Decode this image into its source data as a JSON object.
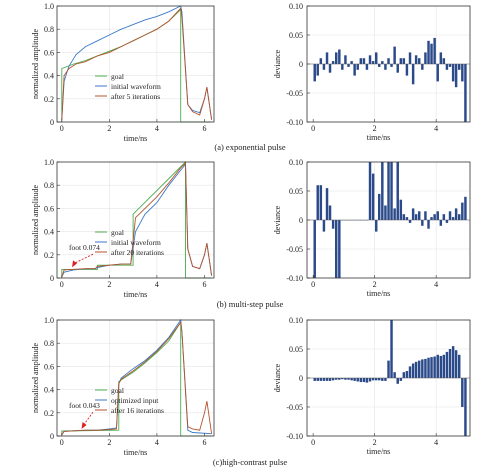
{
  "colors": {
    "goal": "#4caf50",
    "initial": "#3a7ac8",
    "after": "#b5532a",
    "bar": "#2b4a8a",
    "annot": "#e02020"
  },
  "panels": [
    {
      "id": "a",
      "caption": "(a) exponential pulse",
      "left": {
        "xlabel": "time/ns",
        "ylabel": "normalized amplitude",
        "xticks": [
          "0",
          "2",
          "4",
          "6"
        ],
        "yticks": [
          "0",
          "0.2",
          "0.4",
          "0.6",
          "0.8",
          "1.0"
        ],
        "legend": [
          "goal",
          "initial waveform",
          "after 5 iterations"
        ],
        "annotation": null
      },
      "right": {
        "xlabel": "time/ns",
        "ylabel": "deviance",
        "xticks": [
          "0",
          "2",
          "4"
        ],
        "yticks": [
          "0.10",
          "0.05",
          "0",
          "-0.05",
          "-0.10"
        ]
      }
    },
    {
      "id": "b",
      "caption": "(b) multi-step pulse",
      "left": {
        "xlabel": "time/ns",
        "ylabel": "normalized amplitude",
        "xticks": [
          "0",
          "2",
          "4",
          "6"
        ],
        "yticks": [
          "0",
          "0.2",
          "0.4",
          "0.6",
          "0.8",
          "1.0"
        ],
        "legend": [
          "goal",
          "initial waveform",
          "after 20 iterations"
        ],
        "annotation": "foot 0.074"
      },
      "right": {
        "xlabel": "time/ns",
        "ylabel": "deviance",
        "xticks": [
          "0",
          "2",
          "4"
        ],
        "yticks": [
          "0.10",
          "0.05",
          "0",
          "-0.05",
          "-0.10"
        ]
      }
    },
    {
      "id": "c",
      "caption": "(c)high-contrast pulse",
      "left": {
        "xlabel": "time/ns",
        "ylabel": "normalized amplitude",
        "xticks": [
          "0",
          "2",
          "4",
          "6"
        ],
        "yticks": [
          "0",
          "0.2",
          "0.4",
          "0.6",
          "0.8",
          "1.0"
        ],
        "legend": [
          "goal",
          "optimized input",
          "after 16 iterations"
        ],
        "annotation": "foot 0.043"
      },
      "right": {
        "xlabel": "time/ns",
        "ylabel": "deviance",
        "xticks": [
          "0",
          "2",
          "4"
        ],
        "yticks": [
          "0.10",
          "0.05",
          "0",
          "-0.05",
          "-0.10"
        ]
      }
    }
  ],
  "chart_data": [
    {
      "type": "line",
      "xlim": [
        -0.2,
        6.4
      ],
      "ylim": [
        0,
        1.0
      ],
      "xlabel": "time/ns",
      "ylabel": "normalized amplitude",
      "series": [
        {
          "name": "goal",
          "x": [
            0,
            0,
            0.5,
            1,
            1.5,
            2,
            2.5,
            3,
            3.5,
            4,
            4.5,
            5,
            5,
            6.3
          ],
          "y": [
            0,
            0.46,
            0.5,
            0.53,
            0.57,
            0.61,
            0.65,
            0.7,
            0.75,
            0.8,
            0.87,
            0.97,
            0,
            0
          ]
        },
        {
          "name": "initial waveform",
          "x": [
            0,
            0.1,
            0.3,
            0.6,
            1,
            1.5,
            2,
            2.5,
            3,
            3.5,
            4,
            4.5,
            5,
            5.05,
            5.3,
            5.5,
            5.8,
            6.0,
            6.1,
            6.3
          ],
          "y": [
            0.02,
            0.35,
            0.48,
            0.58,
            0.65,
            0.7,
            0.75,
            0.8,
            0.84,
            0.88,
            0.91,
            0.95,
            1.0,
            0.95,
            0.15,
            0.1,
            0.08,
            0.2,
            0.3,
            0.02
          ]
        },
        {
          "name": "after 5 iterations",
          "x": [
            0,
            0.1,
            0.3,
            0.6,
            1,
            1.5,
            2,
            2.5,
            3,
            3.5,
            4,
            4.5,
            5,
            5.05,
            5.3,
            5.5,
            5.8,
            6.0,
            6.1,
            6.3
          ],
          "y": [
            0.02,
            0.4,
            0.46,
            0.5,
            0.52,
            0.57,
            0.6,
            0.65,
            0.7,
            0.75,
            0.8,
            0.87,
            0.98,
            0.9,
            0.15,
            0.09,
            0.06,
            0.2,
            0.3,
            0.02
          ]
        }
      ]
    },
    {
      "type": "bar",
      "xlim": [
        -0.2,
        5.1
      ],
      "ylim": [
        -0.1,
        0.1
      ],
      "xlabel": "time/ns",
      "ylabel": "deviance",
      "x": [
        0.05,
        0.15,
        0.25,
        0.35,
        0.45,
        0.55,
        0.65,
        0.75,
        0.85,
        0.95,
        1.05,
        1.15,
        1.25,
        1.35,
        1.45,
        1.55,
        1.65,
        1.75,
        1.85,
        1.95,
        2.05,
        2.15,
        2.25,
        2.35,
        2.45,
        2.55,
        2.65,
        2.75,
        2.85,
        2.95,
        3.05,
        3.15,
        3.25,
        3.35,
        3.45,
        3.55,
        3.65,
        3.75,
        3.85,
        3.95,
        4.05,
        4.15,
        4.25,
        4.35,
        4.45,
        4.55,
        4.65,
        4.75,
        4.85,
        4.95
      ],
      "values": [
        -0.03,
        -0.02,
        0.01,
        -0.01,
        0.02,
        -0.015,
        0.005,
        0.02,
        0.025,
        -0.01,
        0.015,
        -0.005,
        0.005,
        -0.02,
        -0.01,
        0.01,
        0.01,
        -0.01,
        0.015,
        0.005,
        0.02,
        -0.005,
        0.005,
        -0.01,
        0.01,
        -0.005,
        0.03,
        -0.015,
        0.01,
        0.01,
        -0.02,
        0.02,
        -0.035,
        0.015,
        0.01,
        -0.01,
        0.02,
        0.04,
        0.035,
        0.045,
        -0.03,
        0.02,
        0.01,
        -0.01,
        -0.005,
        -0.03,
        -0.04,
        -0.01,
        -0.03,
        -0.1
      ]
    },
    {
      "type": "line",
      "xlim": [
        -0.2,
        6.4
      ],
      "ylim": [
        0,
        1.0
      ],
      "xlabel": "time/ns",
      "ylabel": "normalized amplitude",
      "annotations": [
        {
          "text": "foot 0.074",
          "x": 0.6,
          "y": 0.074
        }
      ],
      "series": [
        {
          "name": "goal",
          "x": [
            0,
            0,
            1.5,
            1.5,
            3,
            3,
            5.2,
            5.2,
            6.3
          ],
          "y": [
            0,
            0.074,
            0.074,
            0.11,
            0.11,
            0.55,
            1.0,
            0,
            0
          ]
        },
        {
          "name": "initial waveform",
          "x": [
            0,
            0.1,
            0.5,
            1,
            1.4,
            1.5,
            2,
            2.5,
            2.9,
            3.1,
            3.5,
            4,
            4.5,
            5,
            5.2,
            5.3,
            5.5,
            5.8,
            6.0,
            6.1,
            6.3
          ],
          "y": [
            0.01,
            0.05,
            0.07,
            0.08,
            0.08,
            0.09,
            0.11,
            0.12,
            0.12,
            0.4,
            0.55,
            0.65,
            0.8,
            0.93,
            0.98,
            0.25,
            0.1,
            0.08,
            0.2,
            0.3,
            0.02
          ]
        },
        {
          "name": "after 20 iterations",
          "x": [
            0,
            0.1,
            0.5,
            1,
            1.4,
            1.5,
            2,
            2.5,
            2.9,
            3.1,
            3.5,
            4,
            4.5,
            5,
            5.2,
            5.3,
            5.5,
            5.8,
            6.0,
            6.1,
            6.3
          ],
          "y": [
            0.01,
            0.07,
            0.075,
            0.08,
            0.08,
            0.1,
            0.11,
            0.12,
            0.12,
            0.52,
            0.6,
            0.7,
            0.82,
            0.95,
            0.99,
            0.25,
            0.1,
            0.08,
            0.2,
            0.3,
            0.02
          ]
        }
      ]
    },
    {
      "type": "bar",
      "xlim": [
        -0.2,
        5.1
      ],
      "ylim": [
        -0.1,
        0.1
      ],
      "xlabel": "time/ns",
      "ylabel": "deviance",
      "x": [
        0.05,
        0.15,
        0.25,
        0.35,
        0.45,
        0.55,
        0.65,
        0.75,
        0.85,
        0.95,
        1.05,
        1.15,
        1.25,
        1.35,
        1.45,
        1.55,
        1.65,
        1.75,
        1.85,
        1.95,
        2.05,
        2.15,
        2.25,
        2.35,
        2.45,
        2.55,
        2.65,
        2.75,
        2.85,
        2.95,
        3.05,
        3.15,
        3.25,
        3.35,
        3.45,
        3.55,
        3.65,
        3.75,
        3.85,
        3.95,
        4.05,
        4.15,
        4.25,
        4.35,
        4.45,
        4.55,
        4.65,
        4.75,
        4.85,
        4.95
      ],
      "values": [
        -0.1,
        0.06,
        0.06,
        -0.02,
        0.055,
        0.025,
        -0.015,
        -0.1,
        -0.1,
        0,
        0,
        0,
        0,
        0,
        0,
        0,
        0,
        0,
        0.1,
        0.08,
        -0.02,
        0.045,
        0.1,
        0.025,
        0.1,
        0.1,
        0.02,
        0.1,
        0.035,
        0.01,
        0.005,
        -0.005,
        0.02,
        0.01,
        0.015,
        -0.01,
        0.015,
        -0.015,
        0.005,
        0.01,
        0.015,
        -0.01,
        0.01,
        -0.005,
        0.015,
        0.005,
        0.02,
        0.01,
        0.03,
        0.04
      ]
    },
    {
      "type": "line",
      "xlim": [
        -0.2,
        6.4
      ],
      "ylim": [
        0,
        1.0
      ],
      "xlabel": "time/ns",
      "ylabel": "normalized amplitude",
      "annotations": [
        {
          "text": "foot 0.043",
          "x": 1.0,
          "y": 0.043
        }
      ],
      "series": [
        {
          "name": "goal",
          "x": [
            0,
            0,
            2.4,
            2.4,
            3,
            3.5,
            4,
            4.5,
            5,
            5,
            6.3
          ],
          "y": [
            0,
            0.043,
            0.05,
            0.47,
            0.55,
            0.63,
            0.72,
            0.82,
            0.98,
            0,
            0
          ]
        },
        {
          "name": "optimized input",
          "x": [
            0,
            0.1,
            0.5,
            1,
            1.5,
            2,
            2.3,
            2.4,
            2.5,
            3,
            3.5,
            4,
            4.5,
            5,
            5.05,
            5.3,
            5.5,
            6.3
          ],
          "y": [
            0.01,
            0.04,
            0.045,
            0.05,
            0.05,
            0.06,
            0.07,
            0.45,
            0.5,
            0.58,
            0.65,
            0.74,
            0.85,
            1.0,
            0.9,
            0.05,
            0.03,
            0.02
          ]
        },
        {
          "name": "after 16 iterations",
          "x": [
            0,
            0.1,
            0.5,
            1,
            1.5,
            2,
            2.3,
            2.4,
            2.5,
            3,
            3.5,
            4,
            4.5,
            5,
            5.05,
            5.3,
            5.5,
            5.8,
            6.0,
            6.1,
            6.3
          ],
          "y": [
            0.01,
            0.04,
            0.045,
            0.05,
            0.05,
            0.055,
            0.06,
            0.45,
            0.49,
            0.56,
            0.64,
            0.73,
            0.84,
            0.98,
            0.9,
            0.08,
            0.06,
            0.05,
            0.2,
            0.3,
            0.02
          ]
        }
      ]
    },
    {
      "type": "bar",
      "xlim": [
        -0.2,
        5.1
      ],
      "ylim": [
        -0.1,
        0.1
      ],
      "xlabel": "time/ns",
      "ylabel": "deviance",
      "x": [
        0.05,
        0.15,
        0.25,
        0.35,
        0.45,
        0.55,
        0.65,
        0.75,
        0.85,
        0.95,
        1.05,
        1.15,
        1.25,
        1.35,
        1.45,
        1.55,
        1.65,
        1.75,
        1.85,
        1.95,
        2.05,
        2.15,
        2.25,
        2.35,
        2.45,
        2.55,
        2.65,
        2.75,
        2.85,
        2.95,
        3.05,
        3.15,
        3.25,
        3.35,
        3.45,
        3.55,
        3.65,
        3.75,
        3.85,
        3.95,
        4.05,
        4.15,
        4.25,
        4.35,
        4.45,
        4.55,
        4.65,
        4.75,
        4.85,
        4.95
      ],
      "values": [
        -0.005,
        -0.005,
        -0.005,
        -0.005,
        -0.005,
        -0.005,
        -0.004,
        -0.003,
        -0.003,
        -0.002,
        -0.003,
        -0.003,
        -0.004,
        -0.005,
        -0.006,
        -0.007,
        -0.007,
        -0.008,
        -0.006,
        -0.004,
        -0.004,
        -0.004,
        -0.005,
        -0.005,
        0.03,
        0.1,
        0.01,
        -0.01,
        -0.005,
        0.01,
        0.012,
        0.02,
        0.025,
        0.028,
        0.03,
        0.032,
        0.033,
        0.035,
        0.036,
        0.037,
        0.04,
        0.038,
        0.04,
        0.045,
        0.05,
        0.055,
        0.048,
        0.04,
        -0.05,
        -0.1
      ]
    }
  ]
}
